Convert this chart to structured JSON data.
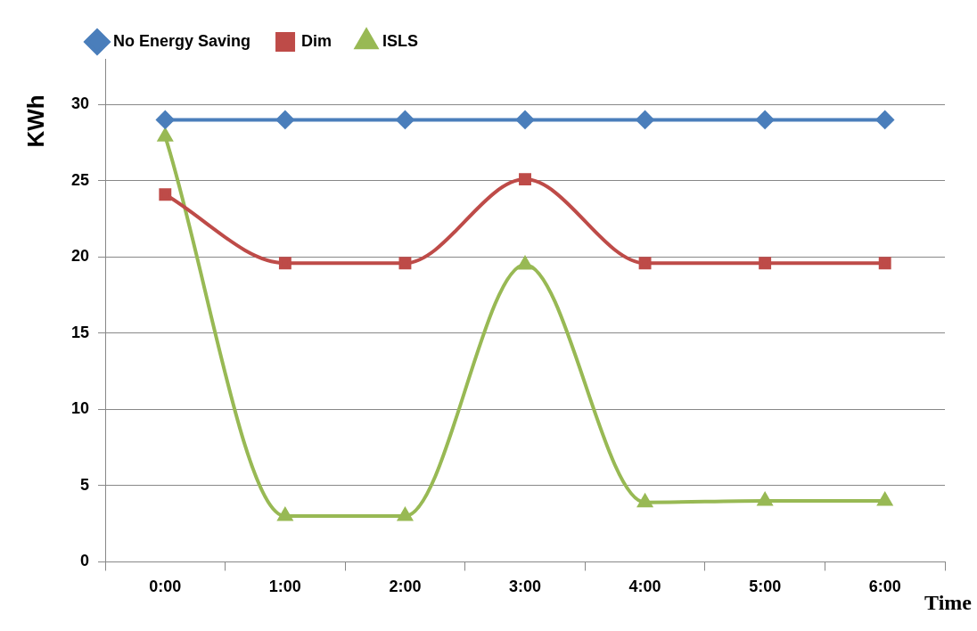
{
  "chart_data": {
    "type": "line",
    "xlabel": "Time",
    "ylabel": "KWh",
    "categories": [
      "0:00",
      "1:00",
      "2:00",
      "3:00",
      "4:00",
      "5:00",
      "6:00"
    ],
    "series": [
      {
        "name": "No Energy Saving",
        "color": "#4a7ebb",
        "marker": "diamond",
        "values": [
          29,
          29,
          29,
          29,
          29,
          29,
          29
        ]
      },
      {
        "name": "Dim",
        "color": "#be4b48",
        "marker": "square",
        "values": [
          24.1,
          19.6,
          19.6,
          25.1,
          19.6,
          19.6,
          19.6
        ]
      },
      {
        "name": "ISLS",
        "color": "#98b954",
        "marker": "triangle",
        "values": [
          27.9,
          3,
          3,
          19.5,
          3.9,
          4,
          4
        ]
      }
    ],
    "ylim": [
      0,
      33
    ],
    "yticks": [
      0,
      5,
      10,
      15,
      20,
      25,
      30
    ],
    "grid": "y",
    "legend": "top",
    "line_style": "solid"
  }
}
